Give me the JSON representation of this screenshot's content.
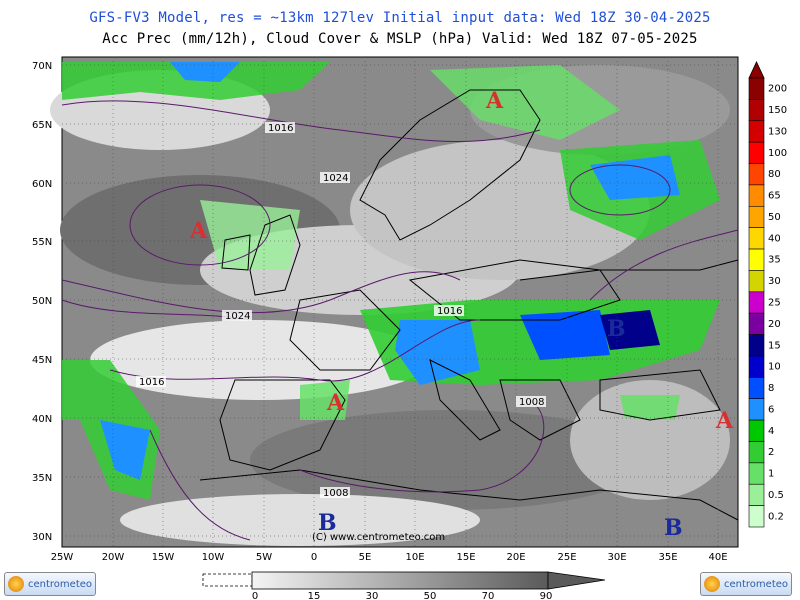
{
  "title_line1": "GFS-FV3 Model, res = ~13km 127lev   Initial input data: Wed 18Z 30-04-2025",
  "title_line2": "Acc Prec (mm/12h), Cloud Cover & MSLP (hPa)  Valid: Wed 18Z 07-05-2025",
  "lat_labels": [
    "70N",
    "65N",
    "60N",
    "55N",
    "50N",
    "45N",
    "40N",
    "35N",
    "30N"
  ],
  "lon_labels": [
    "25W",
    "20W",
    "15W",
    "10W",
    "5W",
    "0",
    "5E",
    "10E",
    "15E",
    "20E",
    "25E",
    "30E",
    "35E",
    "40E"
  ],
  "precip_scale": {
    "labels": [
      "200",
      "150",
      "130",
      "100",
      "80",
      "65",
      "50",
      "40",
      "35",
      "30",
      "25",
      "20",
      "15",
      "10",
      "8",
      "6",
      "4",
      "2",
      "1",
      "0.5",
      "0.2"
    ],
    "colors": [
      "#8b0000",
      "#b00000",
      "#d40000",
      "#ff0000",
      "#ff4500",
      "#ff8c00",
      "#ffa500",
      "#ffd700",
      "#ffff00",
      "#d4d400",
      "#cc00cc",
      "#7a00a0",
      "#00008b",
      "#0000cd",
      "#0050ff",
      "#1e90ff",
      "#00c800",
      "#32cd32",
      "#66e066",
      "#99f099",
      "#ccffcc"
    ]
  },
  "cloud_scale": {
    "labels": [
      "0",
      "15",
      "30",
      "50",
      "70",
      "90"
    ]
  },
  "pressure_centers": [
    {
      "label": "A",
      "color": "#d83030"
    },
    {
      "label": "A",
      "color": "#d83030"
    },
    {
      "label": "A",
      "color": "#d83030"
    },
    {
      "label": "A",
      "color": "#d83030"
    },
    {
      "label": "B",
      "color": "#1a2a9a"
    },
    {
      "label": "B",
      "color": "#1a2a9a"
    },
    {
      "label": "B",
      "color": "#1a2a9a"
    }
  ],
  "isobar_labels": [
    "1016",
    "1024",
    "1024",
    "1016",
    "1016",
    "1008",
    "1008"
  ],
  "watermark": "(C) www.centrometeo.com",
  "logo_text": "centrometeo",
  "colors": {
    "title1": "#1f4fd8",
    "land_clear": "#b8e8b0",
    "cloud_light": "#d8d8d8",
    "cloud_dark": "#6e6e6e"
  }
}
